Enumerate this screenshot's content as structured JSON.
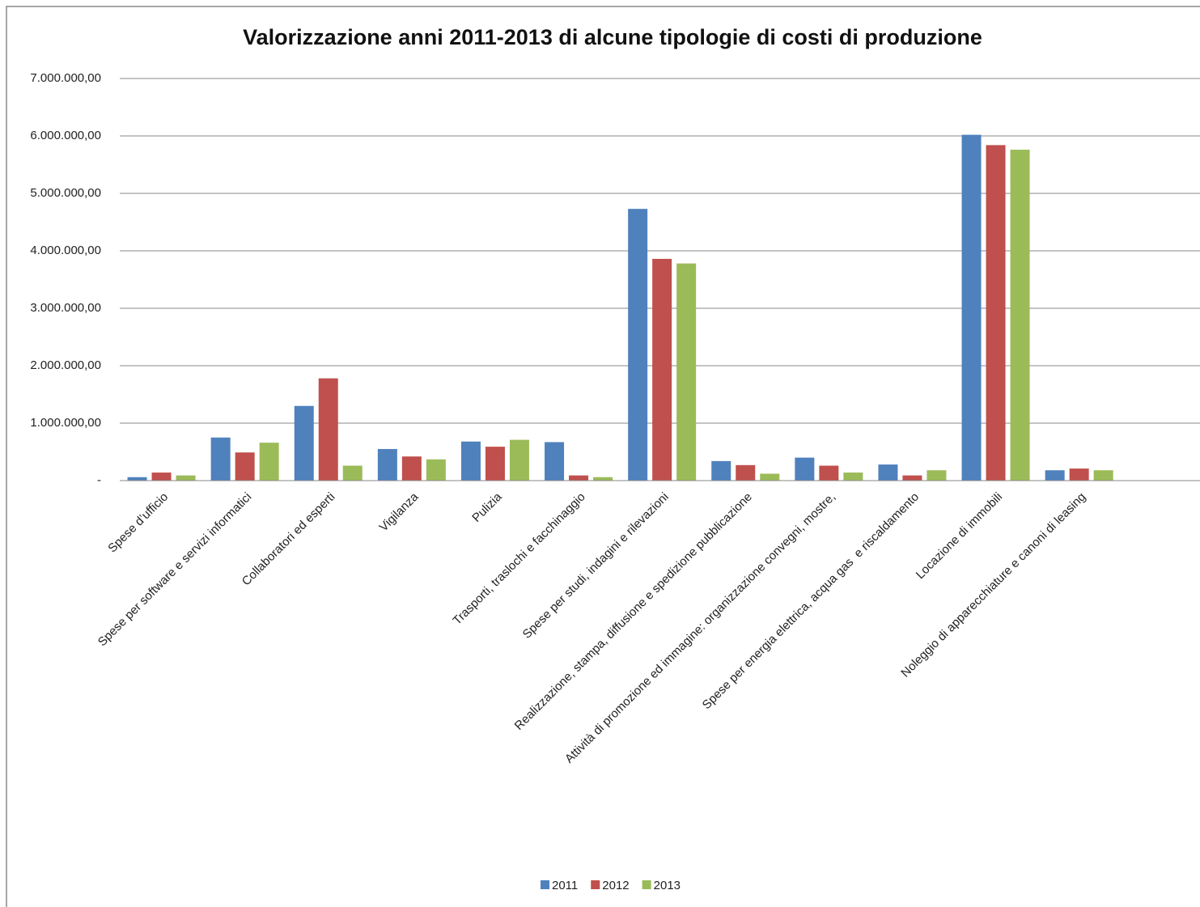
{
  "chart_data": {
    "type": "bar",
    "title": "Valorizzazione anni 2011-2013 di alcune tipologie di costi di produzione",
    "categories": [
      "Spese d’ufficio",
      "Spese per software e servizi informatici",
      "Collaboratori ed esperti",
      "Vigilanza",
      "Pulizia",
      "Trasporti, traslochi e facchinaggio",
      "Spese per studi, indagini e rilevazioni",
      "Realizzazione, stampa, diffusione e spedizione pubblicazione",
      "Attività di promozione ed immagine: organizzazione convegni, mostre,",
      "Spese per energia elettrica, acqua gas  e riscaldamento",
      "Locazione di immobili",
      "Noleggio di apparecchiature e canoni di leasing"
    ],
    "series": [
      {
        "name": "2011",
        "color": "#4f81bd",
        "values": [
          60000,
          750000,
          1300000,
          550000,
          680000,
          670000,
          4730000,
          340000,
          400000,
          280000,
          6020000,
          180000
        ]
      },
      {
        "name": "2012",
        "color": "#c0504d",
        "values": [
          140000,
          490000,
          1780000,
          420000,
          590000,
          90000,
          3860000,
          270000,
          260000,
          90000,
          5840000,
          210000
        ]
      },
      {
        "name": "2013",
        "color": "#9bbb59",
        "values": [
          90000,
          660000,
          260000,
          370000,
          710000,
          60000,
          3780000,
          120000,
          140000,
          180000,
          5760000,
          180000
        ]
      }
    ],
    "ylim": [
      0,
      7000000
    ],
    "yticks": [
      {
        "value": 0,
        "label": "-"
      },
      {
        "value": 1000000,
        "label": "1.000.000,00"
      },
      {
        "value": 2000000,
        "label": "2.000.000,00"
      },
      {
        "value": 3000000,
        "label": "3.000.000,00"
      },
      {
        "value": 4000000,
        "label": "4.000.000,00"
      },
      {
        "value": 5000000,
        "label": "5.000.000,00"
      },
      {
        "value": 6000000,
        "label": "6.000.000,00"
      },
      {
        "value": 7000000,
        "label": "7.000.000,00"
      }
    ],
    "grid": true,
    "legend": "bottom"
  }
}
